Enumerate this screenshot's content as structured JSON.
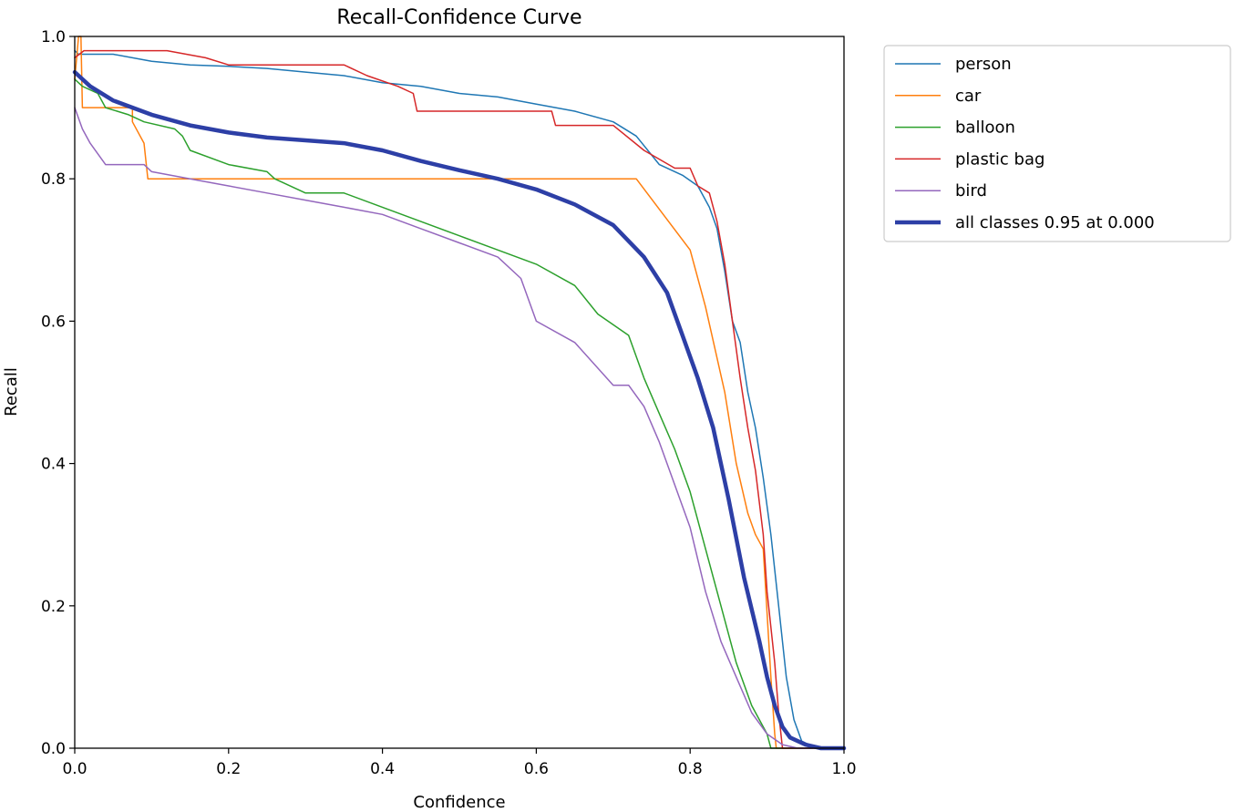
{
  "chart_data": {
    "type": "line",
    "title": "Recall-Confidence Curve",
    "xlabel": "Confidence",
    "ylabel": "Recall",
    "xlim": [
      0.0,
      1.0
    ],
    "ylim": [
      0.0,
      1.0
    ],
    "x_ticks": [
      "0.0",
      "0.2",
      "0.4",
      "0.6",
      "0.8",
      "1.0"
    ],
    "y_ticks": [
      "0.0",
      "0.2",
      "0.4",
      "0.6",
      "0.8",
      "1.0"
    ],
    "grid": false,
    "legend_position": "outside-top-right",
    "series": [
      {
        "name": "person",
        "color": "#1f77b4",
        "width": 1.5,
        "points": [
          [
            0,
            0.98
          ],
          [
            0.005,
            0.975
          ],
          [
            0.05,
            0.975
          ],
          [
            0.1,
            0.965
          ],
          [
            0.15,
            0.96
          ],
          [
            0.2,
            0.958
          ],
          [
            0.25,
            0.955
          ],
          [
            0.3,
            0.95
          ],
          [
            0.35,
            0.945
          ],
          [
            0.4,
            0.935
          ],
          [
            0.45,
            0.93
          ],
          [
            0.5,
            0.92
          ],
          [
            0.55,
            0.915
          ],
          [
            0.6,
            0.905
          ],
          [
            0.65,
            0.895
          ],
          [
            0.7,
            0.88
          ],
          [
            0.73,
            0.86
          ],
          [
            0.76,
            0.82
          ],
          [
            0.79,
            0.805
          ],
          [
            0.81,
            0.79
          ],
          [
            0.825,
            0.76
          ],
          [
            0.835,
            0.73
          ],
          [
            0.845,
            0.67
          ],
          [
            0.855,
            0.6
          ],
          [
            0.865,
            0.57
          ],
          [
            0.875,
            0.5
          ],
          [
            0.885,
            0.45
          ],
          [
            0.895,
            0.38
          ],
          [
            0.905,
            0.3
          ],
          [
            0.915,
            0.2
          ],
          [
            0.925,
            0.1
          ],
          [
            0.935,
            0.04
          ],
          [
            0.945,
            0.01
          ],
          [
            0.96,
            0.002
          ],
          [
            1.0,
            0.0
          ]
        ]
      },
      {
        "name": "car",
        "color": "#ff7f0e",
        "width": 1.5,
        "points": [
          [
            0,
            0.94
          ],
          [
            0.005,
            1.0
          ],
          [
            0.008,
            1.0
          ],
          [
            0.01,
            0.9
          ],
          [
            0.075,
            0.9
          ],
          [
            0.075,
            0.88
          ],
          [
            0.09,
            0.85
          ],
          [
            0.095,
            0.8
          ],
          [
            0.73,
            0.8
          ],
          [
            0.8,
            0.7
          ],
          [
            0.82,
            0.62
          ],
          [
            0.845,
            0.5
          ],
          [
            0.86,
            0.4
          ],
          [
            0.875,
            0.33
          ],
          [
            0.885,
            0.3
          ],
          [
            0.895,
            0.28
          ],
          [
            0.905,
            0.1
          ],
          [
            0.91,
            0.02
          ],
          [
            0.912,
            0.0
          ],
          [
            1.0,
            0.0
          ]
        ]
      },
      {
        "name": "balloon",
        "color": "#2ca02c",
        "width": 1.5,
        "points": [
          [
            0,
            0.94
          ],
          [
            0.01,
            0.93
          ],
          [
            0.03,
            0.92
          ],
          [
            0.04,
            0.9
          ],
          [
            0.07,
            0.89
          ],
          [
            0.09,
            0.88
          ],
          [
            0.13,
            0.87
          ],
          [
            0.14,
            0.86
          ],
          [
            0.15,
            0.84
          ],
          [
            0.2,
            0.82
          ],
          [
            0.25,
            0.81
          ],
          [
            0.26,
            0.8
          ],
          [
            0.3,
            0.78
          ],
          [
            0.35,
            0.78
          ],
          [
            0.4,
            0.76
          ],
          [
            0.45,
            0.74
          ],
          [
            0.5,
            0.72
          ],
          [
            0.55,
            0.7
          ],
          [
            0.6,
            0.68
          ],
          [
            0.65,
            0.65
          ],
          [
            0.68,
            0.61
          ],
          [
            0.72,
            0.58
          ],
          [
            0.74,
            0.52
          ],
          [
            0.76,
            0.47
          ],
          [
            0.78,
            0.42
          ],
          [
            0.8,
            0.36
          ],
          [
            0.82,
            0.28
          ],
          [
            0.84,
            0.2
          ],
          [
            0.86,
            0.12
          ],
          [
            0.88,
            0.06
          ],
          [
            0.9,
            0.02
          ],
          [
            0.905,
            0.0
          ],
          [
            1.0,
            0.0
          ]
        ]
      },
      {
        "name": "plastic bag",
        "color": "#d62728",
        "width": 1.5,
        "points": [
          [
            0,
            0.97
          ],
          [
            0.012,
            0.98
          ],
          [
            0.12,
            0.98
          ],
          [
            0.17,
            0.97
          ],
          [
            0.2,
            0.96
          ],
          [
            0.35,
            0.96
          ],
          [
            0.38,
            0.945
          ],
          [
            0.42,
            0.93
          ],
          [
            0.44,
            0.92
          ],
          [
            0.445,
            0.895
          ],
          [
            0.62,
            0.895
          ],
          [
            0.625,
            0.875
          ],
          [
            0.7,
            0.875
          ],
          [
            0.74,
            0.84
          ],
          [
            0.78,
            0.815
          ],
          [
            0.8,
            0.815
          ],
          [
            0.81,
            0.79
          ],
          [
            0.825,
            0.78
          ],
          [
            0.835,
            0.74
          ],
          [
            0.845,
            0.68
          ],
          [
            0.855,
            0.6
          ],
          [
            0.865,
            0.52
          ],
          [
            0.875,
            0.45
          ],
          [
            0.885,
            0.39
          ],
          [
            0.895,
            0.3
          ],
          [
            0.9,
            0.22
          ],
          [
            0.91,
            0.12
          ],
          [
            0.915,
            0.05
          ],
          [
            0.92,
            0.0
          ],
          [
            1.0,
            0.0
          ]
        ]
      },
      {
        "name": "bird",
        "color": "#9467bd",
        "width": 1.5,
        "points": [
          [
            0,
            0.9
          ],
          [
            0.01,
            0.87
          ],
          [
            0.02,
            0.85
          ],
          [
            0.04,
            0.82
          ],
          [
            0.09,
            0.82
          ],
          [
            0.1,
            0.81
          ],
          [
            0.15,
            0.8
          ],
          [
            0.2,
            0.79
          ],
          [
            0.25,
            0.78
          ],
          [
            0.3,
            0.77
          ],
          [
            0.35,
            0.76
          ],
          [
            0.4,
            0.75
          ],
          [
            0.45,
            0.73
          ],
          [
            0.5,
            0.71
          ],
          [
            0.55,
            0.69
          ],
          [
            0.58,
            0.66
          ],
          [
            0.6,
            0.6
          ],
          [
            0.65,
            0.57
          ],
          [
            0.7,
            0.51
          ],
          [
            0.72,
            0.51
          ],
          [
            0.74,
            0.48
          ],
          [
            0.76,
            0.43
          ],
          [
            0.78,
            0.37
          ],
          [
            0.8,
            0.31
          ],
          [
            0.82,
            0.22
          ],
          [
            0.84,
            0.15
          ],
          [
            0.86,
            0.1
          ],
          [
            0.88,
            0.05
          ],
          [
            0.9,
            0.02
          ],
          [
            0.92,
            0.005
          ],
          [
            0.94,
            0.0
          ],
          [
            1.0,
            0.0
          ]
        ]
      },
      {
        "name": "all classes 0.95 at 0.000",
        "color": "#2d3fa6",
        "width": 4.5,
        "points": [
          [
            0,
            0.95
          ],
          [
            0.02,
            0.93
          ],
          [
            0.05,
            0.91
          ],
          [
            0.1,
            0.89
          ],
          [
            0.15,
            0.875
          ],
          [
            0.2,
            0.865
          ],
          [
            0.25,
            0.858
          ],
          [
            0.3,
            0.854
          ],
          [
            0.35,
            0.85
          ],
          [
            0.4,
            0.84
          ],
          [
            0.45,
            0.825
          ],
          [
            0.5,
            0.812
          ],
          [
            0.55,
            0.8
          ],
          [
            0.6,
            0.785
          ],
          [
            0.65,
            0.764
          ],
          [
            0.7,
            0.735
          ],
          [
            0.74,
            0.69
          ],
          [
            0.77,
            0.64
          ],
          [
            0.79,
            0.58
          ],
          [
            0.81,
            0.52
          ],
          [
            0.83,
            0.45
          ],
          [
            0.85,
            0.35
          ],
          [
            0.87,
            0.24
          ],
          [
            0.89,
            0.15
          ],
          [
            0.9,
            0.1
          ],
          [
            0.91,
            0.06
          ],
          [
            0.92,
            0.03
          ],
          [
            0.93,
            0.015
          ],
          [
            0.95,
            0.005
          ],
          [
            0.97,
            0.0
          ],
          [
            1.0,
            0.0
          ]
        ]
      }
    ]
  }
}
